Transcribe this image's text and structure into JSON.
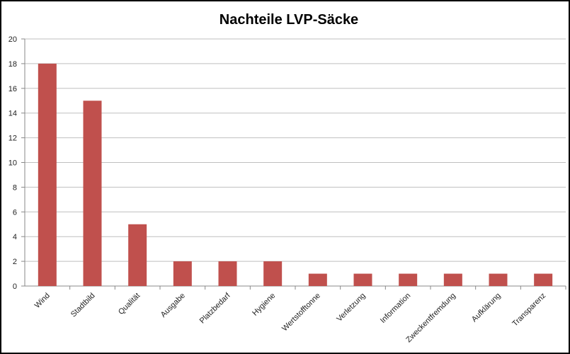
{
  "chart_data": {
    "type": "bar",
    "title": "Nachteile LVP-Säcke",
    "categories": [
      "Wind",
      "Stadtbild",
      "Qualität",
      "Ausgabe",
      "Platzbedarf",
      "Hygiene",
      "Wertstofftonne",
      "Verletzung",
      "Information",
      "Zweckentfremdung",
      "Aufklärung",
      "Transparenz"
    ],
    "values": [
      18,
      15,
      5,
      2,
      2,
      2,
      1,
      1,
      1,
      1,
      1,
      1
    ],
    "color": "#c0504d",
    "ylim": [
      0,
      20
    ],
    "yticks": [
      0,
      2,
      4,
      6,
      8,
      10,
      12,
      14,
      16,
      18,
      20
    ],
    "grid": true
  }
}
